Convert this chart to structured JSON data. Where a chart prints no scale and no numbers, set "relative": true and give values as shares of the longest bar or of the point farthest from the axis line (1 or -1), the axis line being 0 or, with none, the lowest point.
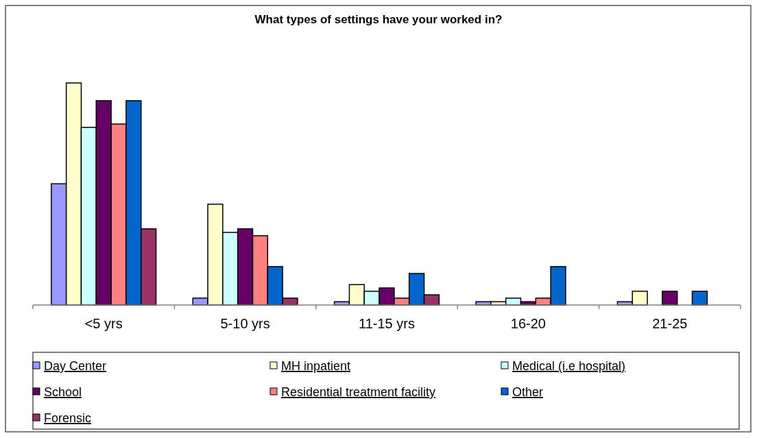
{
  "chart_data": {
    "type": "bar",
    "title": "What types of settings have your worked in?",
    "relative": true,
    "categories": [
      "<5 yrs",
      "5-10 yrs",
      "11-15 yrs",
      "16-20",
      "21-25"
    ],
    "legend": "bottom",
    "series": [
      {
        "name": "Day Center",
        "color": "#9999ff",
        "values": [
          0.546,
          0.031,
          0.015,
          0.015,
          0.015
        ]
      },
      {
        "name": "MH inpatient",
        "color": "#ffffcc",
        "values": [
          1,
          0.454,
          0.092,
          0.015,
          0.062
        ]
      },
      {
        "name": "Medical (i.e hospital)",
        "color": "#ccffff",
        "values": [
          0.8,
          0.327,
          0.062,
          0.031,
          0
        ]
      },
      {
        "name": "School",
        "color": "#660066",
        "values": [
          0.92,
          0.343,
          0.077,
          0.015,
          0.062
        ]
      },
      {
        "name": "Residential treatment facility",
        "color": "#ff8080",
        "values": [
          0.815,
          0.312,
          0.031,
          0.031,
          0
        ]
      },
      {
        "name": "Other",
        "color": "#0066cc",
        "values": [
          0.92,
          0.173,
          0.142,
          0.173,
          0.062
        ]
      },
      {
        "name": "Forensic",
        "color": "#993366",
        "values": [
          0.343,
          0.031,
          0.046,
          0,
          0
        ]
      }
    ]
  }
}
